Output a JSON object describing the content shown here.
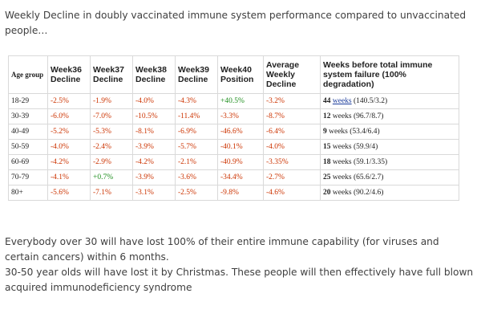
{
  "intro": "Weekly Decline in doubly vaccinated immune system performance compared to unvaccinated people…",
  "table": {
    "headers": [
      "Age group",
      "Week36 Decline",
      "Week37 Decline",
      "Week38 Decline",
      "Week39 Decline",
      "Week40 Position",
      "Average Weekly Decline",
      "Weeks before total immune system failure (100% degradation)"
    ],
    "rows": [
      {
        "age": "18-29",
        "w36": "-2.5%",
        "w37": "-1.9%",
        "w38": "-4.0%",
        "w39": "-4.3%",
        "w40": "+40.5%",
        "avg": "-3.2%",
        "weeks": "44",
        "weeks_word": "weeks",
        "calc": "(140.5/3.2)"
      },
      {
        "age": "30-39",
        "w36": "-6.0%",
        "w37": "-7.0%",
        "w38": "-10.5%",
        "w39": "-11.4%",
        "w40": "-3.3%",
        "avg": "-8.7%",
        "weeks": "12",
        "weeks_word": "weeks",
        "calc": "(96.7/8.7)"
      },
      {
        "age": "40-49",
        "w36": "-5.2%",
        "w37": "-5.3%",
        "w38": "-8.1%",
        "w39": "-6.9%",
        "w40": "-46.6%",
        "avg": "-6.4%",
        "weeks": "9",
        "weeks_word": "weeks",
        "calc": "(53.4/6.4)"
      },
      {
        "age": "50-59",
        "w36": "-4.0%",
        "w37": "-2.4%",
        "w38": "-3.9%",
        "w39": "-5.7%",
        "w40": "-40.1%",
        "avg": "-4.0%",
        "weeks": "15",
        "weeks_word": "weeks",
        "calc": "(59.9/4)"
      },
      {
        "age": "60-69",
        "w36": "-4.2%",
        "w37": "-2.9%",
        "w38": "-4.2%",
        "w39": "-2.1%",
        "w40": "-40.9%",
        "avg": "-3.35%",
        "weeks": "18",
        "weeks_word": "weeks",
        "calc": "(59.1/3.35)"
      },
      {
        "age": "70-79",
        "w36": "-4.1%",
        "w37": "+0.7%",
        "w38": "-3.9%",
        "w39": "-3.6%",
        "w40": "-34.4%",
        "avg": "-2.7%",
        "weeks": "25",
        "weeks_word": "weeks",
        "calc": "(65.6/2.7)"
      },
      {
        "age": "80+",
        "w36": "-5.6%",
        "w37": "-7.1%",
        "w38": "-3.1%",
        "w39": "-2.5%",
        "w40": "-9.8%",
        "avg": "-4.6%",
        "weeks": "20",
        "weeks_word": "weeks",
        "calc": "(90.2/4.6)"
      }
    ]
  },
  "outro": {
    "p1": "Everybody over 30 will have lost 100% of their entire immune capability (for viruses and certain cancers) within 6 months.",
    "p2": "30-50 year olds will have lost it by Christmas. These people will then effectively have full blown acquired immunodeficiency syndrome"
  }
}
